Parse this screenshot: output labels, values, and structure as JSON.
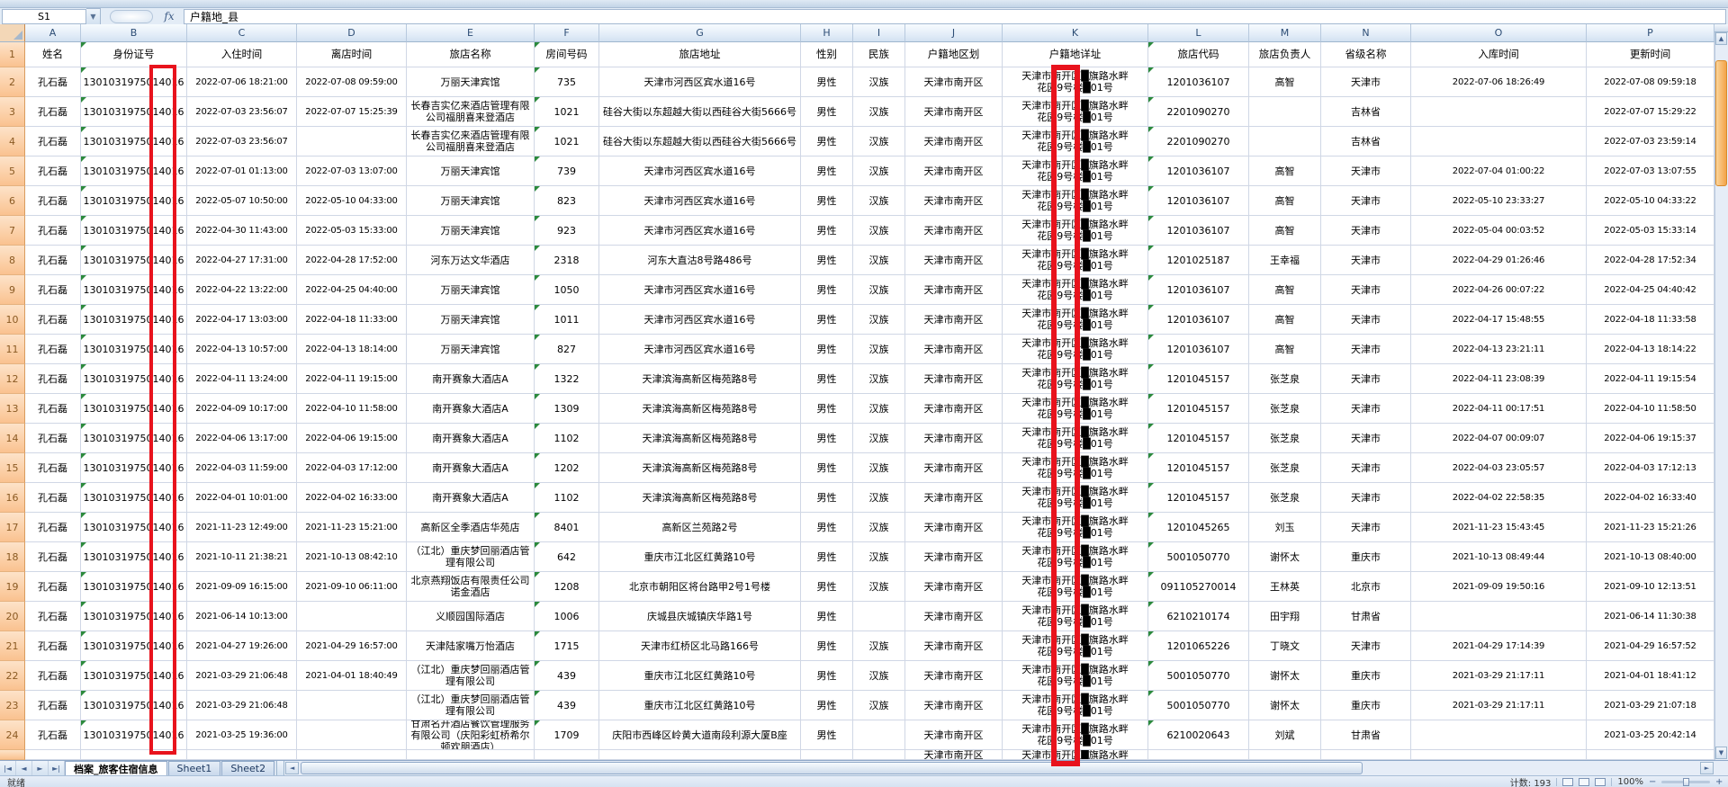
{
  "formula_bar": {
    "name_box": "S1",
    "fx_label": "fx",
    "formula_value": "户籍地_县"
  },
  "columns": [
    "A",
    "B",
    "C",
    "D",
    "E",
    "F",
    "G",
    "H",
    "I",
    "J",
    "K",
    "L",
    "M",
    "N",
    "O",
    "P"
  ],
  "colors": {
    "redaction_red": "#e8131d",
    "row_header_highlight": "#fac290",
    "error_triangle_green": "#2c8a3d"
  },
  "sheet": {
    "field_headers": [
      "姓名",
      "身份证号",
      "入住时间",
      "离店时间",
      "旅店名称",
      "房间号码",
      "旅店地址",
      "性别",
      "民族",
      "户籍地区划",
      "户籍地详址",
      "旅店代码",
      "旅店负责人",
      "省级名称",
      "入库时间",
      "更新时间"
    ],
    "rows": [
      {
        "n": 2,
        "name": "孔石磊",
        "id": "1301031975014016",
        "checkin": "2022-07-06 18:21:00",
        "checkout": "2022-07-08 09:59:00",
        "hotel": "万丽天津宾馆",
        "room": "735",
        "hotel_addr": "天津市河西区宾水道16号",
        "sex": "男性",
        "ethnic": "汉族",
        "region": "天津市南开区",
        "home_addr": "天津市南开区█旗路水畔\n花园9号楼█01号",
        "hotel_code": "1201036107",
        "manager": "高智",
        "province": "天津市",
        "entered": "2022-07-06 18:26:49",
        "updated": "2022-07-08 09:59:18"
      },
      {
        "n": 3,
        "name": "孔石磊",
        "id": "1301031975014016",
        "checkin": "2022-07-03 23:56:07",
        "checkout": "2022-07-07 15:25:39",
        "hotel": "长春吉实亿来酒店管理有限公司福朋喜来登酒店",
        "room": "1021",
        "hotel_addr": "硅谷大街以东超越大街以西硅谷大街5666号",
        "sex": "男性",
        "ethnic": "汉族",
        "region": "天津市南开区",
        "home_addr": "天津市南开区█旗路水畔\n花园9号楼█01号",
        "hotel_code": "2201090270",
        "manager": "",
        "province": "吉林省",
        "entered": "",
        "updated": "2022-07-07 15:29:22"
      },
      {
        "n": 4,
        "name": "孔石磊",
        "id": "1301031975014016",
        "checkin": "2022-07-03 23:56:07",
        "checkout": "",
        "hotel": "长春吉实亿来酒店管理有限公司福朋喜来登酒店",
        "room": "1021",
        "hotel_addr": "硅谷大街以东超越大街以西硅谷大街5666号",
        "sex": "男性",
        "ethnic": "汉族",
        "region": "天津市南开区",
        "home_addr": "天津市南开区█旗路水畔\n花园9号楼█01号",
        "hotel_code": "2201090270",
        "manager": "",
        "province": "吉林省",
        "entered": "",
        "updated": "2022-07-03 23:59:14"
      },
      {
        "n": 5,
        "name": "孔石磊",
        "id": "1301031975014016",
        "checkin": "2022-07-01 01:13:00",
        "checkout": "2022-07-03 13:07:00",
        "hotel": "万丽天津宾馆",
        "room": "739",
        "hotel_addr": "天津市河西区宾水道16号",
        "sex": "男性",
        "ethnic": "汉族",
        "region": "天津市南开区",
        "home_addr": "天津市南开区█旗路水畔\n花园9号楼█01号",
        "hotel_code": "1201036107",
        "manager": "高智",
        "province": "天津市",
        "entered": "2022-07-04 01:00:22",
        "updated": "2022-07-03 13:07:55"
      },
      {
        "n": 6,
        "name": "孔石磊",
        "id": "1301031975014016",
        "checkin": "2022-05-07 10:50:00",
        "checkout": "2022-05-10 04:33:00",
        "hotel": "万丽天津宾馆",
        "room": "823",
        "hotel_addr": "天津市河西区宾水道16号",
        "sex": "男性",
        "ethnic": "汉族",
        "region": "天津市南开区",
        "home_addr": "天津市南开区█旗路水畔\n花园9号楼█01号",
        "hotel_code": "1201036107",
        "manager": "高智",
        "province": "天津市",
        "entered": "2022-05-10 23:33:27",
        "updated": "2022-05-10 04:33:22"
      },
      {
        "n": 7,
        "name": "孔石磊",
        "id": "1301031975014016",
        "checkin": "2022-04-30 11:43:00",
        "checkout": "2022-05-03 15:33:00",
        "hotel": "万丽天津宾馆",
        "room": "923",
        "hotel_addr": "天津市河西区宾水道16号",
        "sex": "男性",
        "ethnic": "汉族",
        "region": "天津市南开区",
        "home_addr": "天津市南开区█旗路水畔\n花园9号楼█01号",
        "hotel_code": "1201036107",
        "manager": "高智",
        "province": "天津市",
        "entered": "2022-05-04 00:03:52",
        "updated": "2022-05-03 15:33:14"
      },
      {
        "n": 8,
        "name": "孔石磊",
        "id": "1301031975014016",
        "checkin": "2022-04-27 17:31:00",
        "checkout": "2022-04-28 17:52:00",
        "hotel": "河东万达文华酒店",
        "room": "2318",
        "hotel_addr": "河东大直沽8号路486号",
        "sex": "男性",
        "ethnic": "汉族",
        "region": "天津市南开区",
        "home_addr": "天津市南开区█旗路水畔\n花园9号楼█01号",
        "hotel_code": "1201025187",
        "manager": "王幸福",
        "province": "天津市",
        "entered": "2022-04-29 01:26:46",
        "updated": "2022-04-28 17:52:34"
      },
      {
        "n": 9,
        "name": "孔石磊",
        "id": "1301031975014016",
        "checkin": "2022-04-22 13:22:00",
        "checkout": "2022-04-25 04:40:00",
        "hotel": "万丽天津宾馆",
        "room": "1050",
        "hotel_addr": "天津市河西区宾水道16号",
        "sex": "男性",
        "ethnic": "汉族",
        "region": "天津市南开区",
        "home_addr": "天津市南开区█旗路水畔\n花园9号楼█01号",
        "hotel_code": "1201036107",
        "manager": "高智",
        "province": "天津市",
        "entered": "2022-04-26 00:07:22",
        "updated": "2022-04-25 04:40:42"
      },
      {
        "n": 10,
        "name": "孔石磊",
        "id": "1301031975014016",
        "checkin": "2022-04-17 13:03:00",
        "checkout": "2022-04-18 11:33:00",
        "hotel": "万丽天津宾馆",
        "room": "1011",
        "hotel_addr": "天津市河西区宾水道16号",
        "sex": "男性",
        "ethnic": "汉族",
        "region": "天津市南开区",
        "home_addr": "天津市南开区█旗路水畔\n花园9号楼█01号",
        "hotel_code": "1201036107",
        "manager": "高智",
        "province": "天津市",
        "entered": "2022-04-17 15:48:55",
        "updated": "2022-04-18 11:33:58"
      },
      {
        "n": 11,
        "name": "孔石磊",
        "id": "1301031975014016",
        "checkin": "2022-04-13 10:57:00",
        "checkout": "2022-04-13 18:14:00",
        "hotel": "万丽天津宾馆",
        "room": "827",
        "hotel_addr": "天津市河西区宾水道16号",
        "sex": "男性",
        "ethnic": "汉族",
        "region": "天津市南开区",
        "home_addr": "天津市南开区█旗路水畔\n花园9号楼█01号",
        "hotel_code": "1201036107",
        "manager": "高智",
        "province": "天津市",
        "entered": "2022-04-13 23:21:11",
        "updated": "2022-04-13 18:14:22"
      },
      {
        "n": 12,
        "name": "孔石磊",
        "id": "1301031975014016",
        "checkin": "2022-04-11 13:24:00",
        "checkout": "2022-04-11 19:15:00",
        "hotel": "南开赛象大酒店A",
        "room": "1322",
        "hotel_addr": "天津滨海高新区梅苑路8号",
        "sex": "男性",
        "ethnic": "汉族",
        "region": "天津市南开区",
        "home_addr": "天津市南开区█旗路水畔\n花园9号楼█01号",
        "hotel_code": "1201045157",
        "manager": "张芝泉",
        "province": "天津市",
        "entered": "2022-04-11 23:08:39",
        "updated": "2022-04-11 19:15:54"
      },
      {
        "n": 13,
        "name": "孔石磊",
        "id": "1301031975014016",
        "checkin": "2022-04-09 10:17:00",
        "checkout": "2022-04-10 11:58:00",
        "hotel": "南开赛象大酒店A",
        "room": "1309",
        "hotel_addr": "天津滨海高新区梅苑路8号",
        "sex": "男性",
        "ethnic": "汉族",
        "region": "天津市南开区",
        "home_addr": "天津市南开区█旗路水畔\n花园9号楼█01号",
        "hotel_code": "1201045157",
        "manager": "张芝泉",
        "province": "天津市",
        "entered": "2022-04-11 00:17:51",
        "updated": "2022-04-10 11:58:50"
      },
      {
        "n": 14,
        "name": "孔石磊",
        "id": "1301031975014016",
        "checkin": "2022-04-06 13:17:00",
        "checkout": "2022-04-06 19:15:00",
        "hotel": "南开赛象大酒店A",
        "room": "1102",
        "hotel_addr": "天津滨海高新区梅苑路8号",
        "sex": "男性",
        "ethnic": "汉族",
        "region": "天津市南开区",
        "home_addr": "天津市南开区█旗路水畔\n花园9号楼█01号",
        "hotel_code": "1201045157",
        "manager": "张芝泉",
        "province": "天津市",
        "entered": "2022-04-07 00:09:07",
        "updated": "2022-04-06 19:15:37"
      },
      {
        "n": 15,
        "name": "孔石磊",
        "id": "1301031975014016",
        "checkin": "2022-04-03 11:59:00",
        "checkout": "2022-04-03 17:12:00",
        "hotel": "南开赛象大酒店A",
        "room": "1202",
        "hotel_addr": "天津滨海高新区梅苑路8号",
        "sex": "男性",
        "ethnic": "汉族",
        "region": "天津市南开区",
        "home_addr": "天津市南开区█旗路水畔\n花园9号楼█01号",
        "hotel_code": "1201045157",
        "manager": "张芝泉",
        "province": "天津市",
        "entered": "2022-04-03 23:05:57",
        "updated": "2022-04-03 17:12:13"
      },
      {
        "n": 16,
        "name": "孔石磊",
        "id": "1301031975014016",
        "checkin": "2022-04-01 10:01:00",
        "checkout": "2022-04-02 16:33:00",
        "hotel": "南开赛象大酒店A",
        "room": "1102",
        "hotel_addr": "天津滨海高新区梅苑路8号",
        "sex": "男性",
        "ethnic": "汉族",
        "region": "天津市南开区",
        "home_addr": "天津市南开区█旗路水畔\n花园9号楼█01号",
        "hotel_code": "1201045157",
        "manager": "张芝泉",
        "province": "天津市",
        "entered": "2022-04-02 22:58:35",
        "updated": "2022-04-02 16:33:40"
      },
      {
        "n": 17,
        "name": "孔石磊",
        "id": "1301031975014016",
        "checkin": "2021-11-23 12:49:00",
        "checkout": "2021-11-23 15:21:00",
        "hotel": "高新区全季酒店华苑店",
        "room": "8401",
        "hotel_addr": "高新区兰苑路2号",
        "sex": "男性",
        "ethnic": "汉族",
        "region": "天津市南开区",
        "home_addr": "天津市南开区█旗路水畔\n花园9号楼█01号",
        "hotel_code": "1201045265",
        "manager": "刘玉",
        "province": "天津市",
        "entered": "2021-11-23 15:43:45",
        "updated": "2021-11-23 15:21:26"
      },
      {
        "n": 18,
        "name": "孔石磊",
        "id": "1301031975014016",
        "checkin": "2021-10-11 21:38:21",
        "checkout": "2021-10-13 08:42:10",
        "hotel": "（江北）重庆梦回丽酒店管理有限公司",
        "room": "642",
        "hotel_addr": "重庆市江北区红黄路10号",
        "sex": "男性",
        "ethnic": "汉族",
        "region": "天津市南开区",
        "home_addr": "天津市南开区█旗路水畔\n花园9号楼█01号",
        "hotel_code": "5001050770",
        "manager": "谢怀太",
        "province": "重庆市",
        "entered": "2021-10-13 08:49:44",
        "updated": "2021-10-13 08:40:00"
      },
      {
        "n": 19,
        "name": "孔石磊",
        "id": "1301031975014016",
        "checkin": "2021-09-09 16:15:00",
        "checkout": "2021-09-10 06:11:00",
        "hotel": "北京燕翔饭店有限责任公司诺金酒店",
        "room": "1208",
        "hotel_addr": "北京市朝阳区将台路甲2号1号楼",
        "sex": "男性",
        "ethnic": "汉族",
        "region": "天津市南开区",
        "home_addr": "天津市南开区█旗路水畔\n花园9号楼█01号",
        "hotel_code": "091105270014",
        "manager": "王林英",
        "province": "北京市",
        "entered": "2021-09-09 19:50:16",
        "updated": "2021-09-10 12:13:51"
      },
      {
        "n": 20,
        "name": "孔石磊",
        "id": "1301031975014016",
        "checkin": "2021-06-14 10:13:00",
        "checkout": "",
        "hotel": "义顺园国际酒店",
        "room": "1006",
        "hotel_addr": "庆城县庆城镇庆华路1号",
        "sex": "男性",
        "ethnic": "",
        "region": "天津市南开区",
        "home_addr": "天津市南开区█旗路水畔\n花园9号楼█01号",
        "hotel_code": "6210210174",
        "manager": "田宇翔",
        "province": "甘肃省",
        "entered": "",
        "updated": "2021-06-14 11:30:38"
      },
      {
        "n": 21,
        "name": "孔石磊",
        "id": "1301031975014016",
        "checkin": "2021-04-27 19:26:00",
        "checkout": "2021-04-29 16:57:00",
        "hotel": "天津陆家嘴万怡酒店",
        "room": "1715",
        "hotel_addr": "天津市红桥区北马路166号",
        "sex": "男性",
        "ethnic": "汉族",
        "region": "天津市南开区",
        "home_addr": "天津市南开区█旗路水畔\n花园9号楼█01号",
        "hotel_code": "1201065226",
        "manager": "丁晓文",
        "province": "天津市",
        "entered": "2021-04-29 17:14:39",
        "updated": "2021-04-29 16:57:52"
      },
      {
        "n": 22,
        "name": "孔石磊",
        "id": "1301031975014016",
        "checkin": "2021-03-29 21:06:48",
        "checkout": "2021-04-01 18:40:49",
        "hotel": "（江北）重庆梦回丽酒店管理有限公司",
        "room": "439",
        "hotel_addr": "重庆市江北区红黄路10号",
        "sex": "男性",
        "ethnic": "汉族",
        "region": "天津市南开区",
        "home_addr": "天津市南开区█旗路水畔\n花园9号楼█01号",
        "hotel_code": "5001050770",
        "manager": "谢怀太",
        "province": "重庆市",
        "entered": "2021-03-29 21:17:11",
        "updated": "2021-04-01 18:41:12"
      },
      {
        "n": 23,
        "name": "孔石磊",
        "id": "1301031975014016",
        "checkin": "2021-03-29 21:06:48",
        "checkout": "",
        "hotel": "（江北）重庆梦回丽酒店管理有限公司",
        "room": "439",
        "hotel_addr": "重庆市江北区红黄路10号",
        "sex": "男性",
        "ethnic": "汉族",
        "region": "天津市南开区",
        "home_addr": "天津市南开区█旗路水畔\n花园9号楼█01号",
        "hotel_code": "5001050770",
        "manager": "谢怀太",
        "province": "重庆市",
        "entered": "2021-03-29 21:17:11",
        "updated": "2021-03-29 21:07:18"
      },
      {
        "n": 24,
        "name": "孔石磊",
        "id": "1301031975014016",
        "checkin": "2021-03-25 19:36:00",
        "checkout": "",
        "hotel": "甘肃名开酒店餐饮管理服务有限公司（庆阳彩虹桥希尔顿欢朋酒店）",
        "room": "1709",
        "hotel_addr": "庆阳市西峰区岭黄大道南段利源大厦B座",
        "sex": "男性",
        "ethnic": "",
        "region": "天津市南开区",
        "home_addr": "天津市南开区█旗路水畔\n花园9号楼█01号",
        "hotel_code": "6210020643",
        "manager": "刘斌",
        "province": "甘肃省",
        "entered": "",
        "updated": "2021-03-25 20:42:14"
      }
    ],
    "partial_row": {
      "region": "天津市南开区",
      "home_addr": "天津市南开区█旗路水畔"
    }
  },
  "tabs": {
    "active": "档案_旅客住宿信息",
    "others": [
      "Sheet1",
      "Sheet2"
    ]
  },
  "status_bar": {
    "ready": "就绪",
    "count_label": "计数: 193",
    "zoom_level": "100%",
    "zoom_minus": "−",
    "zoom_plus": "+"
  },
  "scroll": {
    "v_up": "▲",
    "v_down": "▼",
    "h_left": "◄",
    "h_right": "►",
    "tab_nav": [
      "|◄",
      "◄",
      "►",
      "►|"
    ]
  }
}
